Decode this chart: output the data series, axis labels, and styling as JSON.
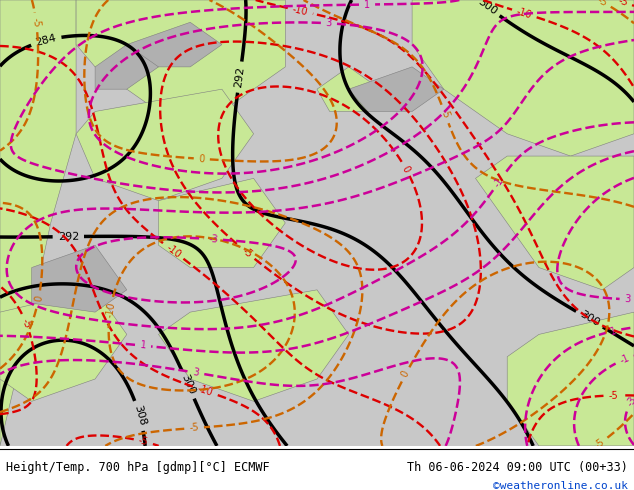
{
  "title_left": "Height/Temp. 700 hPa [gdmp][°C] ECMWF",
  "title_right": "Th 06-06-2024 09:00 UTC (00+33)",
  "credit": "©weatheronline.co.uk",
  "bg_color_ocean": "#c8c8c8",
  "bg_color_land_green": "#c8e896",
  "bg_color_land_gray": "#b0b0b0",
  "contour_black_color": "#000000",
  "contour_red_color": "#dd0000",
  "contour_orange_color": "#cc6600",
  "contour_pink_color": "#cc0099",
  "label_fontsize": 7,
  "footer_fontsize": 8.5,
  "credit_fontsize": 8,
  "credit_color": "#0044cc",
  "figsize": [
    6.34,
    4.9
  ],
  "dpi": 100
}
